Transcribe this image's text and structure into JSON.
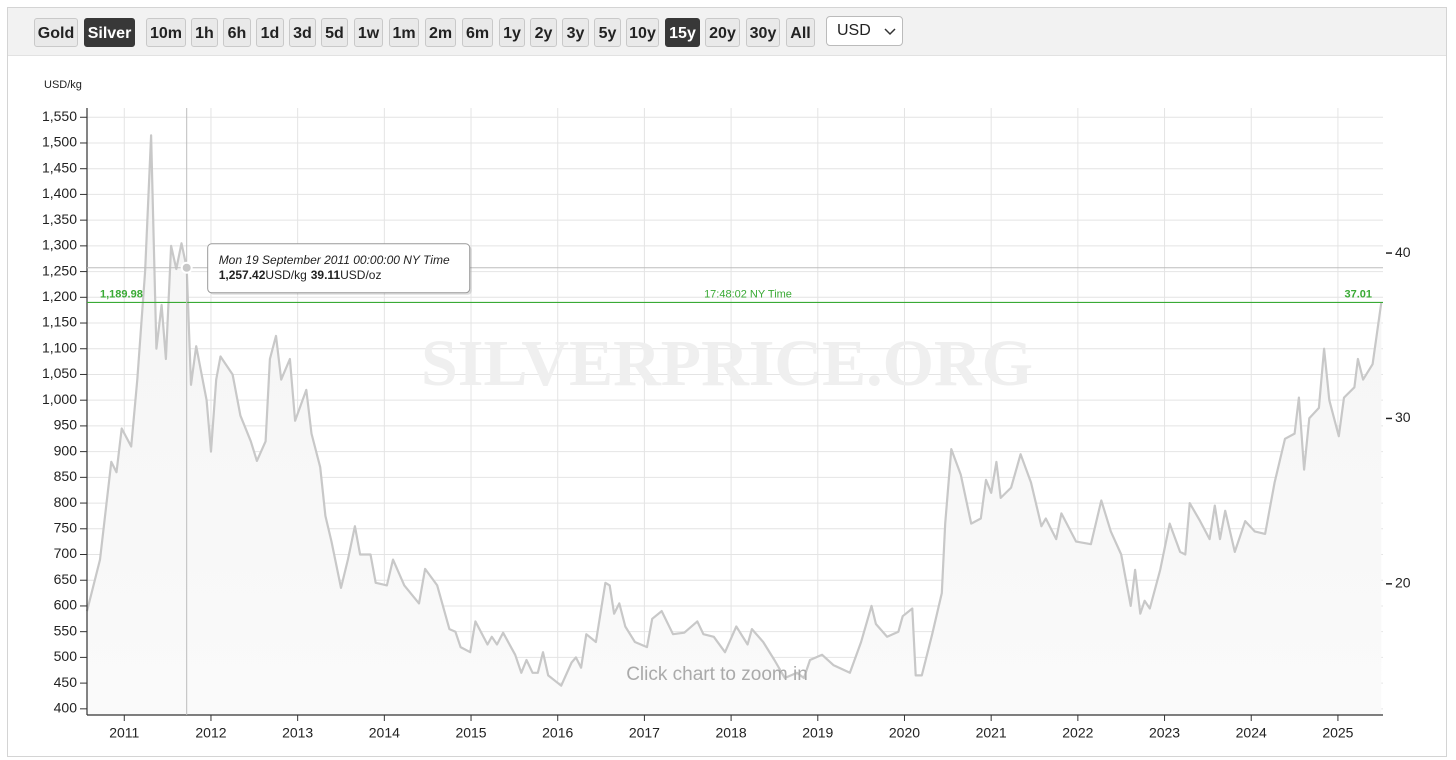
{
  "toolbar": {
    "metals": [
      "Gold",
      "Silver"
    ],
    "active_metal": "Silver",
    "ranges": [
      "10m",
      "1h",
      "6h",
      "1d",
      "3d",
      "5d",
      "1w",
      "1m",
      "2m",
      "6m",
      "1y",
      "2y",
      "3y",
      "5y",
      "10y",
      "15y",
      "20y",
      "30y",
      "All"
    ],
    "active_range": "15y",
    "currency": "USD"
  },
  "chart_data": {
    "type": "line",
    "ylabel": "USD/kg",
    "watermark": "SILVERPRICE.ORG",
    "hint": "Click chart to zoom in",
    "color": "#c8c8c8",
    "grid": true,
    "xlim": [
      2010.57,
      2025.52
    ],
    "xticks": [
      2011,
      2012,
      2013,
      2014,
      2015,
      2016,
      2017,
      2018,
      2019,
      2020,
      2021,
      2022,
      2023,
      2024,
      2025
    ],
    "ylim": [
      388,
      1568
    ],
    "yticks": [
      400,
      450,
      500,
      550,
      600,
      650,
      700,
      750,
      800,
      850,
      900,
      950,
      {
        "value": 1000,
        "label": "1,000"
      },
      {
        "value": 1050,
        "label": "1,050"
      },
      {
        "value": 1100,
        "label": "1,100"
      },
      {
        "value": 1150,
        "label": "1,150"
      },
      {
        "value": 1200,
        "label": "1,200"
      },
      {
        "value": 1250,
        "label": "1,250"
      },
      {
        "value": 1300,
        "label": "1,300"
      },
      {
        "value": 1350,
        "label": "1,350"
      },
      {
        "value": 1400,
        "label": "1,400"
      },
      {
        "value": 1450,
        "label": "1,450"
      },
      {
        "value": 1500,
        "label": "1,500"
      },
      {
        "value": 1550,
        "label": "1,550"
      }
    ],
    "y2lim": [
      12.07,
      48.77
    ],
    "y2ticks": [
      20,
      30,
      40
    ],
    "x": [
      2010.57,
      2010.72,
      2010.85,
      2010.91,
      2010.97,
      2011.08,
      2011.15,
      2011.24,
      2011.31,
      2011.37,
      2011.43,
      2011.48,
      2011.54,
      2011.6,
      2011.66,
      2011.72,
      2011.77,
      2011.83,
      2011.95,
      2012.0,
      2012.06,
      2012.11,
      2012.25,
      2012.34,
      2012.46,
      2012.53,
      2012.63,
      2012.68,
      2012.75,
      2012.81,
      2012.91,
      2012.97,
      2013.1,
      2013.16,
      2013.26,
      2013.32,
      2013.39,
      2013.5,
      2013.58,
      2013.66,
      2013.72,
      2013.84,
      2013.9,
      2014.03,
      2014.1,
      2014.23,
      2014.4,
      2014.47,
      2014.61,
      2014.75,
      2014.82,
      2014.88,
      2014.99,
      2015.05,
      2015.19,
      2015.24,
      2015.3,
      2015.37,
      2015.51,
      2015.58,
      2015.64,
      2015.71,
      2015.77,
      2015.83,
      2015.89,
      2016.04,
      2016.16,
      2016.21,
      2016.27,
      2016.33,
      2016.44,
      2016.55,
      2016.6,
      2016.65,
      2016.71,
      2016.78,
      2016.89,
      2017.03,
      2017.09,
      2017.2,
      2017.33,
      2017.46,
      2017.61,
      2017.68,
      2017.8,
      2017.93,
      2018.06,
      2018.19,
      2018.24,
      2018.37,
      2018.5,
      2018.62,
      2018.76,
      2018.84,
      2018.91,
      2019.05,
      2019.18,
      2019.37,
      2019.5,
      2019.62,
      2019.67,
      2019.8,
      2019.93,
      2019.98,
      2020.09,
      2020.13,
      2020.2,
      2020.32,
      2020.43,
      2020.47,
      2020.54,
      2020.65,
      2020.77,
      2020.88,
      2020.94,
      2021.0,
      2021.06,
      2021.11,
      2021.23,
      2021.34,
      2021.46,
      2021.58,
      2021.63,
      2021.75,
      2021.81,
      2021.98,
      2022.15,
      2022.27,
      2022.38,
      2022.5,
      2022.61,
      2022.66,
      2022.72,
      2022.77,
      2022.83,
      2022.95,
      2023.06,
      2023.18,
      2023.24,
      2023.29,
      2023.41,
      2023.52,
      2023.58,
      2023.64,
      2023.7,
      2023.81,
      2023.93,
      2024.04,
      2024.16,
      2024.27,
      2024.39,
      2024.5,
      2024.55,
      2024.61,
      2024.67,
      2024.78,
      2024.84,
      2024.9,
      2025.01,
      2025.07,
      2025.19,
      2025.23,
      2025.29,
      2025.4,
      2025.5
    ],
    "values": [
      590,
      690,
      880,
      860,
      945,
      910,
      1040,
      1250,
      1515,
      1100,
      1185,
      1080,
      1300,
      1255,
      1305,
      1257.42,
      1030,
      1105,
      1000,
      900,
      1040,
      1085,
      1050,
      970,
      920,
      882,
      920,
      1080,
      1125,
      1040,
      1080,
      960,
      1020,
      935,
      870,
      775,
      725,
      635,
      690,
      755,
      700,
      700,
      645,
      640,
      690,
      640,
      605,
      672,
      640,
      555,
      550,
      520,
      510,
      570,
      525,
      540,
      525,
      548,
      505,
      470,
      495,
      470,
      470,
      510,
      465,
      445,
      490,
      500,
      480,
      545,
      530,
      645,
      640,
      585,
      605,
      560,
      530,
      520,
      575,
      590,
      545,
      548,
      570,
      545,
      540,
      510,
      560,
      525,
      555,
      530,
      495,
      460,
      470,
      460,
      495,
      505,
      485,
      470,
      530,
      600,
      565,
      540,
      550,
      580,
      595,
      465,
      465,
      545,
      625,
      760,
      905,
      855,
      760,
      770,
      845,
      820,
      880,
      810,
      830,
      895,
      840,
      755,
      770,
      730,
      780,
      725,
      720,
      805,
      745,
      700,
      600,
      670,
      585,
      610,
      595,
      670,
      760,
      705,
      700,
      800,
      765,
      730,
      795,
      730,
      785,
      705,
      765,
      745,
      740,
      840,
      925,
      935,
      1005,
      865,
      965,
      985,
      1100,
      1000,
      930,
      1005,
      1025,
      1080,
      1040,
      1070,
      1189.98
    ],
    "current_price": {
      "value": 1189.98,
      "label": "1,189.98",
      "time": "17:48:02 NY Time",
      "y2_value": 37.01,
      "color": "#3aaa35"
    },
    "tooltip": {
      "date": "Mon 19 September 2011 00:00:00 NY Time",
      "x": 2011.72,
      "value": 1257.42,
      "label": "1,257.42",
      "unit": "USD/kg",
      "y2_value": 39.11,
      "y2_unit": "USD/oz"
    }
  }
}
